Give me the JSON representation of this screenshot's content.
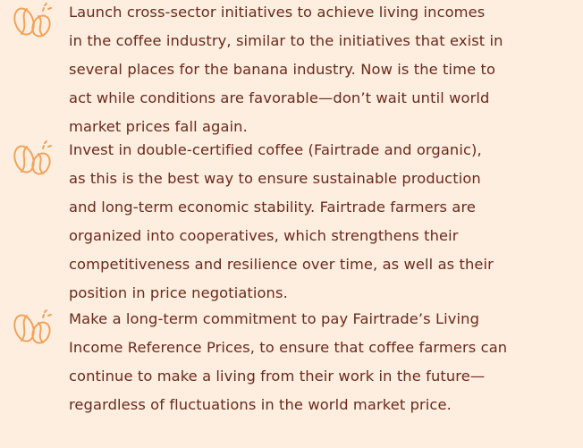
{
  "items": [
    {
      "lines": [
        "Launch cross-sector initiatives to achieve living incomes",
        "in the coffee industry, similar to the initiatives that exist in",
        "several places for the banana industry. Now is the time to",
        "act while conditions are favorable—don’t wait until world",
        "market prices fall again."
      ]
    },
    {
      "lines": [
        "Invest in double-certified coffee (Fairtrade and organic),",
        "as this is the best way to ensure sustainable production",
        "and long-term economic stability. Fairtrade farmers are",
        "organized into cooperatives, which strengthens their",
        "competitiveness and resilience over time, as well as their",
        "position in price negotiations."
      ]
    },
    {
      "lines": [
        "Make a long-term commitment to pay Fairtrade’s Living",
        "Income Reference Prices, to ensure that coffee farmers can",
        "continue to make a living from their work in the future—",
        "regardless of fluctuations in the world market price."
      ]
    }
  ]
}
